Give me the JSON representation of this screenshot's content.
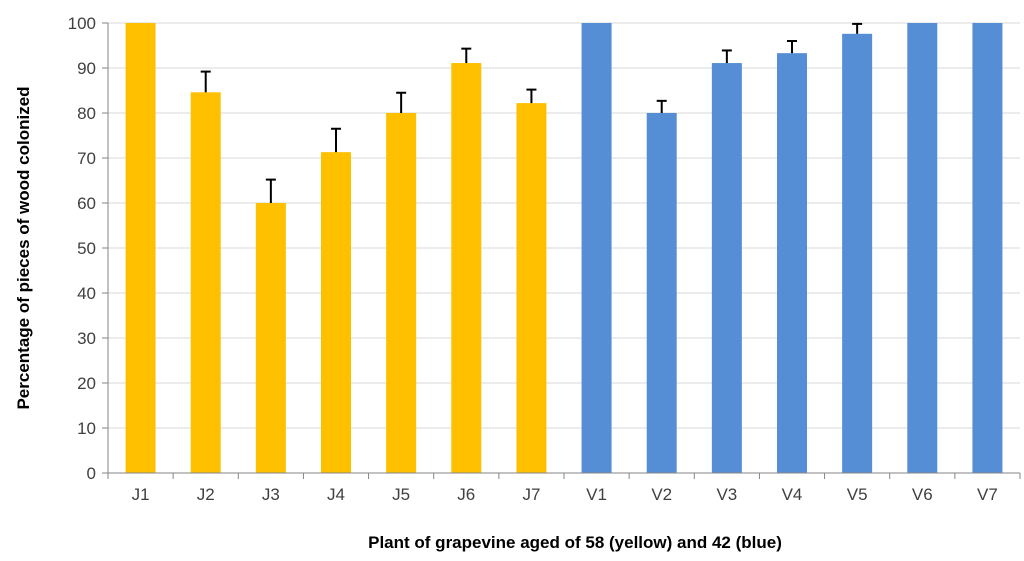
{
  "chart_data": {
    "type": "bar",
    "title": "",
    "xlabel": "Plant of grapevine aged of 58 (yellow) and 42 (blue)",
    "ylabel": "Percentage of pieces of wood colonized",
    "ylim": [
      0,
      100
    ],
    "yticks": [
      0,
      10,
      20,
      30,
      40,
      50,
      60,
      70,
      80,
      90,
      100
    ],
    "grid": true,
    "legend": "none",
    "categories": [
      "J1",
      "J2",
      "J3",
      "J4",
      "J5",
      "J6",
      "J7",
      "V1",
      "V2",
      "V3",
      "V4",
      "V5",
      "V6",
      "V7"
    ],
    "values": [
      100,
      84.6,
      60,
      71.3,
      80,
      91.1,
      82.2,
      100,
      80,
      91.1,
      93.3,
      97.6,
      100,
      100
    ],
    "error_upper": [
      0,
      4.6,
      5.2,
      5.2,
      4.5,
      3.2,
      3.0,
      0,
      2.7,
      2.8,
      2.7,
      2.2,
      0,
      0
    ],
    "bar_colors": [
      "#FFC000",
      "#FFC000",
      "#FFC000",
      "#FFC000",
      "#FFC000",
      "#FFC000",
      "#FFC000",
      "#558ED5",
      "#558ED5",
      "#558ED5",
      "#558ED5",
      "#558ED5",
      "#558ED5",
      "#558ED5"
    ],
    "gridline_color": "#D9D9D9",
    "axis_color": "#868686",
    "error_bar_color": "#000000"
  }
}
